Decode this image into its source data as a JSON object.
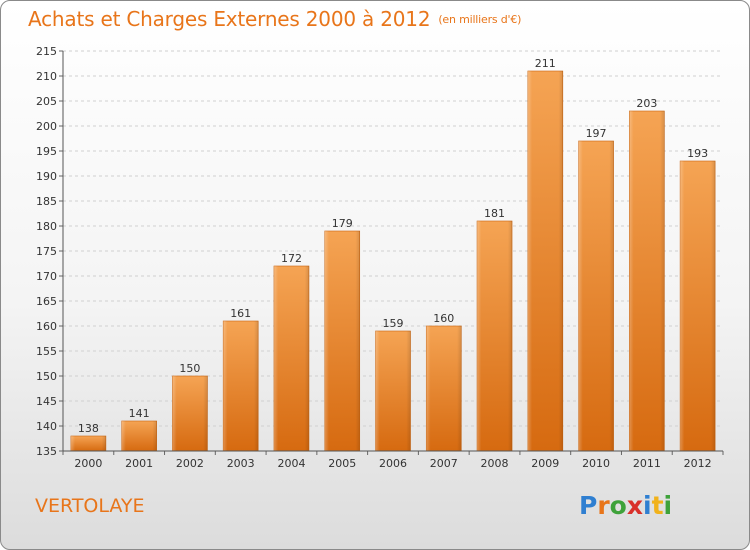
{
  "title": "Achats et Charges Externes 2000 à 2012",
  "unit": "(en milliers d'€)",
  "commune": "VERTOLAYE",
  "logo": {
    "p": "P",
    "r": "r",
    "o": "o",
    "x": "x",
    "i": "i",
    "t": "t",
    "i2": "i"
  },
  "chart_data": {
    "type": "bar",
    "categories": [
      "2000",
      "2001",
      "2002",
      "2003",
      "2004",
      "2005",
      "2006",
      "2007",
      "2008",
      "2009",
      "2010",
      "2011",
      "2012"
    ],
    "values": [
      138,
      141,
      150,
      161,
      172,
      179,
      159,
      160,
      181,
      211,
      197,
      203,
      193
    ],
    "ylim": [
      135,
      215
    ],
    "yticks": [
      135,
      140,
      145,
      150,
      155,
      160,
      165,
      170,
      175,
      180,
      185,
      190,
      195,
      200,
      205,
      210,
      215
    ],
    "grid": true,
    "bar_color": "#f0902e"
  }
}
